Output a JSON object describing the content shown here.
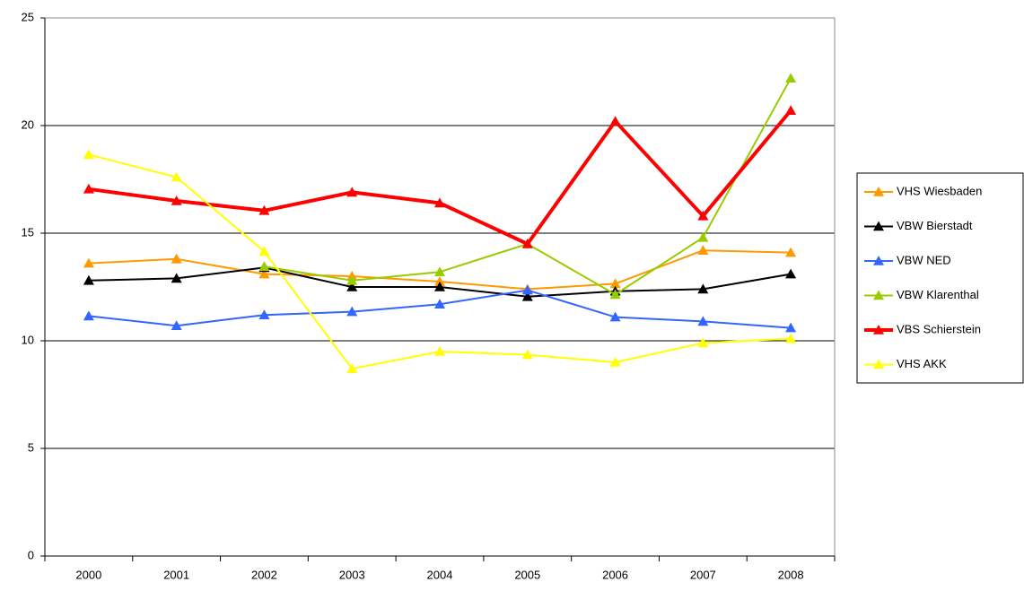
{
  "chart_data": {
    "type": "line",
    "categories": [
      "2000",
      "2001",
      "2002",
      "2003",
      "2004",
      "2005",
      "2006",
      "2007",
      "2008"
    ],
    "series": [
      {
        "name": "VHS Wiesbaden",
        "color": "#ff9900",
        "values": [
          13.6,
          13.8,
          13.1,
          13.0,
          12.75,
          12.4,
          12.65,
          14.2,
          14.1
        ]
      },
      {
        "name": "VBW Bierstadt",
        "color": "#000000",
        "values": [
          12.8,
          12.9,
          13.4,
          12.5,
          12.5,
          12.05,
          12.3,
          12.4,
          13.1
        ]
      },
      {
        "name": "VBW NED",
        "color": "#3366ff",
        "values": [
          11.15,
          10.7,
          11.2,
          11.35,
          11.7,
          12.35,
          11.1,
          10.9,
          10.6
        ]
      },
      {
        "name": "VBW Klarenthal",
        "color": "#99cc00",
        "values": [
          null,
          null,
          13.45,
          12.8,
          13.2,
          14.5,
          12.15,
          14.8,
          22.2
        ]
      },
      {
        "name": "VBS Schierstein",
        "color": "#ff0000",
        "values": [
          17.05,
          16.5,
          16.05,
          16.9,
          16.4,
          14.5,
          20.2,
          15.8,
          20.7
        ]
      },
      {
        "name": "VHS AKK",
        "color": "#ffff00",
        "values": [
          18.65,
          17.6,
          14.15,
          8.7,
          9.5,
          9.35,
          9.0,
          9.9,
          10.1
        ]
      }
    ],
    "ylim": [
      0,
      25
    ],
    "yticks": [
      0,
      5,
      10,
      15,
      20,
      25
    ],
    "grid": true,
    "legend": "right"
  }
}
